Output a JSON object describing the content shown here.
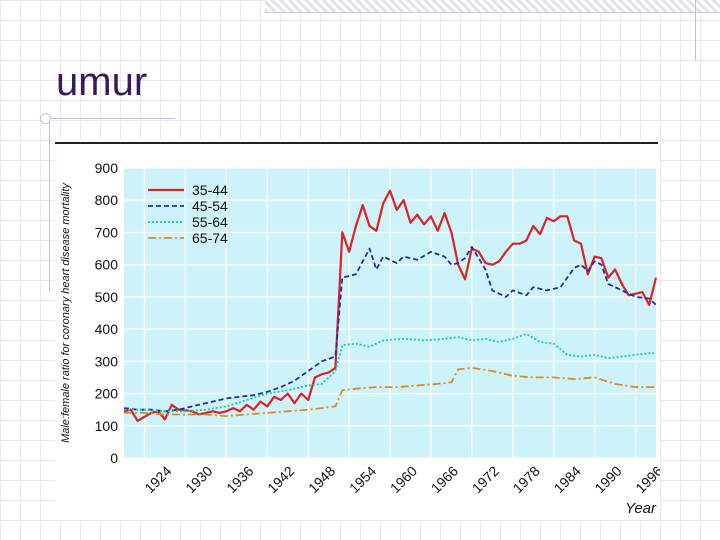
{
  "slide": {
    "title": "umur"
  },
  "chart_data": {
    "type": "line",
    "title": "",
    "xlabel": "Year",
    "ylabel": "Male:female ratio for coronary heart disease mortality",
    "xlim": [
      1921,
      1999
    ],
    "ylim": [
      0,
      900
    ],
    "x_ticks": [
      "1924",
      "1930",
      "1936",
      "1942",
      "1948",
      "1954",
      "1960",
      "1966",
      "1972",
      "1978",
      "1984",
      "1990",
      "1996"
    ],
    "y_ticks": [
      0,
      100,
      200,
      300,
      400,
      500,
      600,
      700,
      800,
      900
    ],
    "grid": true,
    "legend": "top-left",
    "plot_background": "#cdf2fa",
    "series": [
      {
        "name": "35-44",
        "color": "#dd2222",
        "dash": "solid",
        "points": [
          [
            1921,
            145
          ],
          [
            1922,
            150
          ],
          [
            1923,
            115
          ],
          [
            1924,
            128
          ],
          [
            1925,
            140
          ],
          [
            1926,
            145
          ],
          [
            1927,
            120
          ],
          [
            1928,
            165
          ],
          [
            1929,
            150
          ],
          [
            1930,
            148
          ],
          [
            1931,
            145
          ],
          [
            1932,
            135
          ],
          [
            1933,
            140
          ],
          [
            1934,
            145
          ],
          [
            1935,
            140
          ],
          [
            1936,
            145
          ],
          [
            1937,
            155
          ],
          [
            1938,
            145
          ],
          [
            1939,
            165
          ],
          [
            1940,
            150
          ],
          [
            1941,
            175
          ],
          [
            1942,
            160
          ],
          [
            1943,
            190
          ],
          [
            1944,
            180
          ],
          [
            1945,
            200
          ],
          [
            1946,
            170
          ],
          [
            1947,
            200
          ],
          [
            1948,
            180
          ],
          [
            1949,
            250
          ],
          [
            1950,
            260
          ],
          [
            1951,
            265
          ],
          [
            1952,
            280
          ],
          [
            1953,
            700
          ],
          [
            1954,
            640
          ],
          [
            1955,
            720
          ],
          [
            1956,
            785
          ],
          [
            1957,
            720
          ],
          [
            1958,
            705
          ],
          [
            1959,
            790
          ],
          [
            1960,
            830
          ],
          [
            1961,
            770
          ],
          [
            1962,
            800
          ],
          [
            1963,
            730
          ],
          [
            1964,
            755
          ],
          [
            1965,
            725
          ],
          [
            1966,
            750
          ],
          [
            1967,
            705
          ],
          [
            1968,
            760
          ],
          [
            1969,
            700
          ],
          [
            1970,
            600
          ],
          [
            1971,
            555
          ],
          [
            1972,
            650
          ],
          [
            1973,
            640
          ],
          [
            1974,
            605
          ],
          [
            1975,
            600
          ],
          [
            1976,
            610
          ],
          [
            1977,
            640
          ],
          [
            1978,
            665
          ],
          [
            1979,
            665
          ],
          [
            1980,
            675
          ],
          [
            1981,
            720
          ],
          [
            1982,
            695
          ],
          [
            1983,
            745
          ],
          [
            1984,
            735
          ],
          [
            1985,
            750
          ],
          [
            1986,
            750
          ],
          [
            1987,
            675
          ],
          [
            1988,
            665
          ],
          [
            1989,
            570
          ],
          [
            1990,
            625
          ],
          [
            1991,
            620
          ],
          [
            1992,
            560
          ],
          [
            1993,
            585
          ],
          [
            1994,
            540
          ],
          [
            1995,
            505
          ],
          [
            1996,
            510
          ],
          [
            1997,
            515
          ],
          [
            1998,
            475
          ],
          [
            1999,
            560
          ]
        ]
      },
      {
        "name": "45-54",
        "color": "#1f2f9f",
        "dash": "5,3",
        "points": [
          [
            1921,
            155
          ],
          [
            1923,
            150
          ],
          [
            1925,
            150
          ],
          [
            1927,
            145
          ],
          [
            1929,
            150
          ],
          [
            1931,
            160
          ],
          [
            1932,
            165
          ],
          [
            1934,
            175
          ],
          [
            1936,
            185
          ],
          [
            1938,
            190
          ],
          [
            1940,
            195
          ],
          [
            1942,
            205
          ],
          [
            1944,
            220
          ],
          [
            1946,
            240
          ],
          [
            1948,
            270
          ],
          [
            1950,
            300
          ],
          [
            1952,
            315
          ],
          [
            1953,
            560
          ],
          [
            1955,
            570
          ],
          [
            1957,
            650
          ],
          [
            1958,
            585
          ],
          [
            1959,
            625
          ],
          [
            1961,
            605
          ],
          [
            1962,
            625
          ],
          [
            1964,
            615
          ],
          [
            1966,
            640
          ],
          [
            1968,
            625
          ],
          [
            1969,
            600
          ],
          [
            1970,
            605
          ],
          [
            1971,
            620
          ],
          [
            1972,
            655
          ],
          [
            1974,
            585
          ],
          [
            1975,
            520
          ],
          [
            1977,
            500
          ],
          [
            1978,
            520
          ],
          [
            1980,
            505
          ],
          [
            1981,
            530
          ],
          [
            1983,
            520
          ],
          [
            1985,
            530
          ],
          [
            1987,
            590
          ],
          [
            1988,
            600
          ],
          [
            1989,
            580
          ],
          [
            1990,
            610
          ],
          [
            1991,
            600
          ],
          [
            1992,
            540
          ],
          [
            1994,
            520
          ],
          [
            1996,
            500
          ],
          [
            1998,
            495
          ],
          [
            1999,
            475
          ]
        ]
      },
      {
        "name": "55-64",
        "color": "#18c8b8",
        "dash": "2,2",
        "points": [
          [
            1921,
            150
          ],
          [
            1924,
            150
          ],
          [
            1927,
            145
          ],
          [
            1930,
            145
          ],
          [
            1933,
            150
          ],
          [
            1936,
            160
          ],
          [
            1939,
            180
          ],
          [
            1942,
            200
          ],
          [
            1945,
            210
          ],
          [
            1948,
            225
          ],
          [
            1950,
            230
          ],
          [
            1952,
            270
          ],
          [
            1953,
            350
          ],
          [
            1955,
            355
          ],
          [
            1957,
            345
          ],
          [
            1959,
            365
          ],
          [
            1962,
            370
          ],
          [
            1965,
            365
          ],
          [
            1968,
            370
          ],
          [
            1970,
            375
          ],
          [
            1972,
            365
          ],
          [
            1974,
            370
          ],
          [
            1976,
            360
          ],
          [
            1978,
            370
          ],
          [
            1980,
            385
          ],
          [
            1982,
            360
          ],
          [
            1984,
            355
          ],
          [
            1986,
            320
          ],
          [
            1988,
            315
          ],
          [
            1990,
            320
          ],
          [
            1992,
            310
          ],
          [
            1994,
            315
          ],
          [
            1996,
            320
          ],
          [
            1998,
            325
          ],
          [
            1999,
            325
          ]
        ]
      },
      {
        "name": "65-74",
        "color": "#e08a20",
        "dash": "8,3,2,3",
        "points": [
          [
            1921,
            140
          ],
          [
            1924,
            140
          ],
          [
            1927,
            135
          ],
          [
            1930,
            135
          ],
          [
            1933,
            135
          ],
          [
            1936,
            130
          ],
          [
            1939,
            135
          ],
          [
            1942,
            140
          ],
          [
            1945,
            145
          ],
          [
            1948,
            150
          ],
          [
            1950,
            155
          ],
          [
            1952,
            160
          ],
          [
            1953,
            210
          ],
          [
            1955,
            215
          ],
          [
            1958,
            220
          ],
          [
            1961,
            220
          ],
          [
            1964,
            225
          ],
          [
            1967,
            230
          ],
          [
            1969,
            235
          ],
          [
            1970,
            275
          ],
          [
            1972,
            280
          ],
          [
            1975,
            270
          ],
          [
            1978,
            255
          ],
          [
            1981,
            250
          ],
          [
            1984,
            250
          ],
          [
            1987,
            245
          ],
          [
            1990,
            250
          ],
          [
            1993,
            230
          ],
          [
            1996,
            220
          ],
          [
            1999,
            220
          ]
        ]
      }
    ]
  }
}
